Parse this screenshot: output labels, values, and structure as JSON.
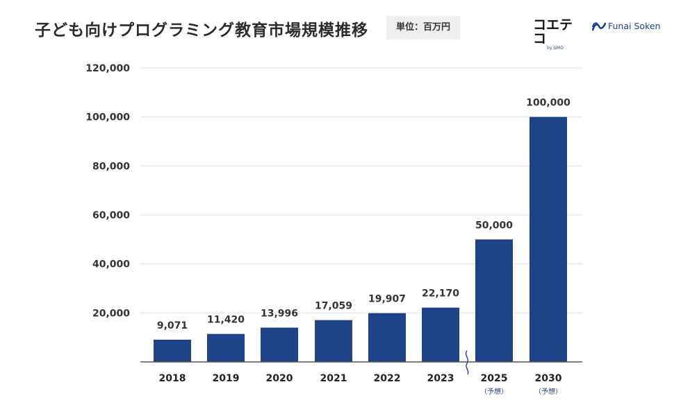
{
  "header": {
    "title": "子ども向けプログラミング教育市場規模推移",
    "unit_label": "単位：百万円"
  },
  "logos": {
    "koeteko_main": "コエテコ",
    "koeteko_sub": "by GMO",
    "funai": "Funai Soken"
  },
  "colors": {
    "bar": "#1d4489",
    "grid": "#d9e3ef",
    "axis": "#555555",
    "break_mark": "#1d3f8f"
  },
  "chart_data": {
    "type": "bar",
    "title": "子ども向けプログラミング教育市場規模推移",
    "xlabel": "",
    "ylabel": "百万円",
    "categories": [
      "2018",
      "2019",
      "2020",
      "2021",
      "2022",
      "2023",
      "2025",
      "2030"
    ],
    "notes": [
      "",
      "",
      "",
      "",
      "",
      "",
      "（予想）",
      "（予想）"
    ],
    "values": [
      9071,
      11420,
      13996,
      17059,
      19907,
      22170,
      50000,
      100000
    ],
    "value_labels": [
      "9,071",
      "11,420",
      "13,996",
      "17,059",
      "19,907",
      "22,170",
      "50,000",
      "100,000"
    ],
    "ylim": [
      0,
      120000
    ],
    "yticks": [
      20000,
      40000,
      60000,
      80000,
      100000,
      120000
    ],
    "ytick_labels": [
      "20,000",
      "40,000",
      "60,000",
      "80,000",
      "100,000",
      "120,000"
    ],
    "grid": true,
    "axis_break_between": [
      "2023",
      "2025"
    ]
  }
}
